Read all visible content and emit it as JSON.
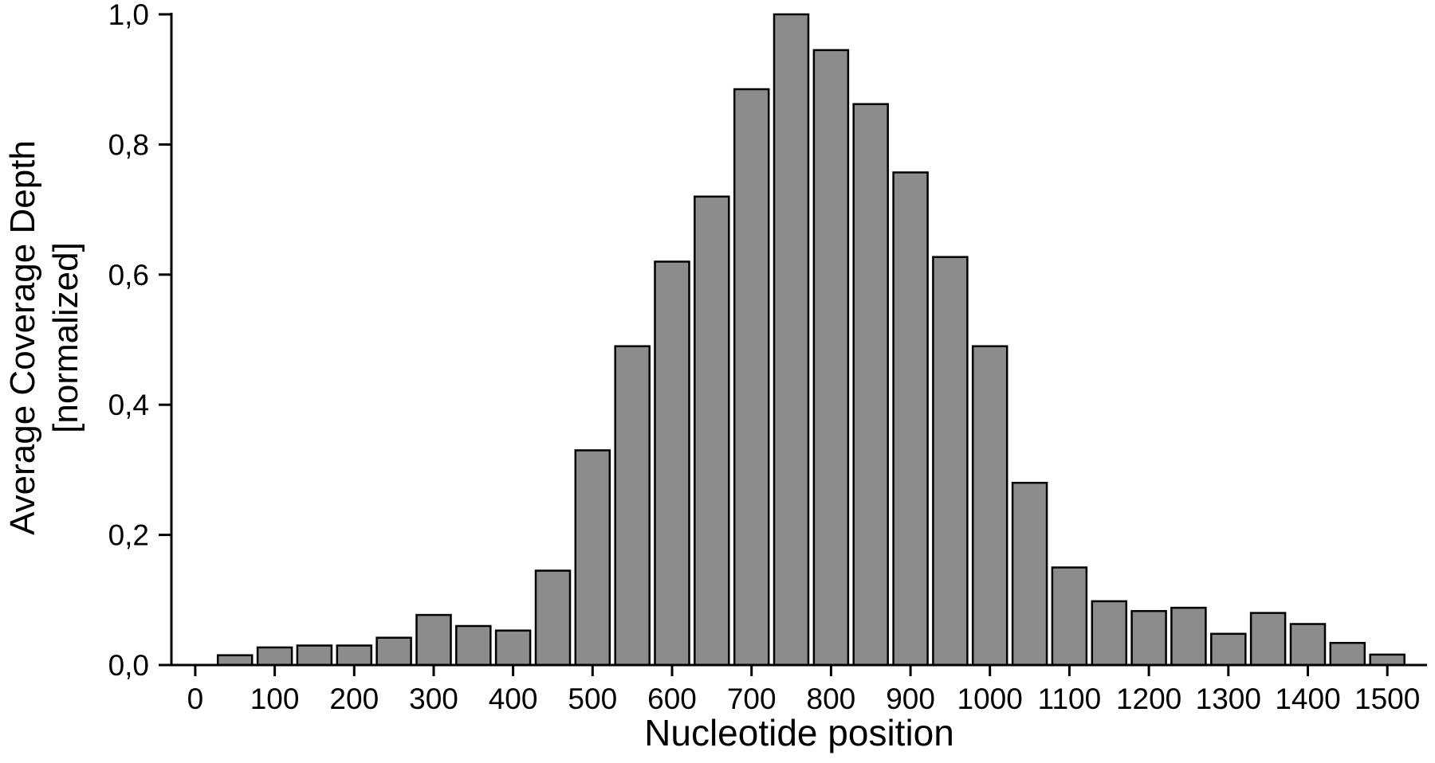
{
  "chart_data": {
    "type": "bar",
    "title": "",
    "xlabel": "Nucleotide position",
    "ylabel_line1": "Average Coverage Depth",
    "ylabel_line2": "[normalized]",
    "x": [
      50,
      100,
      150,
      200,
      250,
      300,
      350,
      400,
      450,
      500,
      550,
      600,
      650,
      700,
      750,
      800,
      850,
      900,
      950,
      1000,
      1050,
      1100,
      1150,
      1200,
      1250,
      1300,
      1350,
      1400,
      1450,
      1500
    ],
    "values": [
      0.015,
      0.027,
      0.03,
      0.03,
      0.042,
      0.077,
      0.06,
      0.053,
      0.145,
      0.33,
      0.49,
      0.62,
      0.72,
      0.885,
      1.0,
      0.945,
      0.862,
      0.757,
      0.627,
      0.49,
      0.28,
      0.15,
      0.098,
      0.083,
      0.088,
      0.048,
      0.08,
      0.063,
      0.034,
      0.016
    ],
    "x_ticks": [
      0,
      100,
      200,
      300,
      400,
      500,
      600,
      700,
      800,
      900,
      1000,
      1100,
      1200,
      1300,
      1400,
      1500
    ],
    "y_ticks": [
      0,
      0.2,
      0.4,
      0.6,
      0.8,
      1.0
    ],
    "y_tick_labels": [
      "0,0",
      "0,2",
      "0,4",
      "0,6",
      "0,8",
      "1,0"
    ],
    "xlim": [
      -30,
      1550
    ],
    "ylim": [
      0,
      1.0
    ],
    "grid": false,
    "legend": "none",
    "bar_color": "#8c8c8c",
    "bar_edge_color": "#000000",
    "axis_color": "#000000",
    "background_color": "#ffffff"
  }
}
